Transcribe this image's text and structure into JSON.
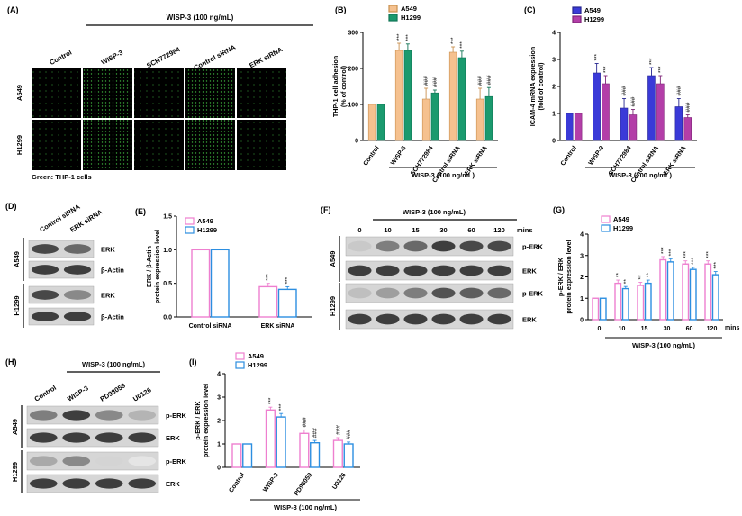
{
  "panel_labels": [
    "(A)",
    "(B)",
    "(C)",
    "(D)",
    "(E)",
    "(F)",
    "(G)",
    "(H)",
    "(I)"
  ],
  "treatment": "WISP-3 (100 ng/mL)",
  "colors": {
    "a549_b": "#f5c18f",
    "h1299_b": "#1a9a6e",
    "a549_c": "#3a3ad8",
    "h1299_c": "#b33ea8",
    "a549_eg": "#ee7fcf",
    "h1299_eg": "#2c8ee0"
  },
  "panelA": {
    "columns": [
      "Control",
      "WISP-3",
      "SCH772984",
      "Control siRNA",
      "ERK siRNA"
    ],
    "rows": [
      "A549",
      "H1299"
    ],
    "caption": "Green: THP-1 cells"
  },
  "panelD": {
    "lanes": [
      "Control siRNA",
      "ERK siRNA"
    ],
    "bands": [
      "ERK",
      "β-Actin",
      "ERK",
      "β-Actin"
    ],
    "cells": [
      "A549",
      "H1299"
    ]
  },
  "panelF": {
    "time_labels": [
      "0",
      "10",
      "15",
      "30",
      "60",
      "120"
    ],
    "time_unit": "mins",
    "bands": [
      "p-ERK",
      "ERK",
      "p-ERK",
      "ERK"
    ],
    "cells": [
      "A549",
      "H1299"
    ]
  },
  "panelH": {
    "lanes": [
      "Control",
      "WISP-3",
      "PD98059",
      "U0126"
    ],
    "bands": [
      "p-ERK",
      "ERK",
      "p-ERK",
      "ERK"
    ],
    "cells": [
      "A549",
      "H1299"
    ]
  },
  "chart_data": [
    {
      "id": "B",
      "type": "bar",
      "ylabel": "THP-1 cell adhesion\n(% of control)",
      "ylim": [
        0,
        300
      ],
      "yticks": [
        0,
        100,
        200,
        300
      ],
      "categories": [
        "Control",
        "WISP-3",
        "SCH772984",
        "Control siRNA",
        "ERK siRNA"
      ],
      "series": [
        {
          "name": "A549",
          "values": [
            100,
            250,
            115,
            245,
            115
          ],
          "errors": [
            0,
            20,
            30,
            15,
            30
          ]
        },
        {
          "name": "H1299",
          "values": [
            100,
            250,
            132,
            230,
            122
          ],
          "errors": [
            0,
            18,
            8,
            18,
            25
          ]
        }
      ],
      "annotations": [
        "",
        "***",
        "###",
        "***",
        "###"
      ],
      "group_label": "WISP-3 (100 ng/mL)"
    },
    {
      "id": "C",
      "type": "bar",
      "ylabel": "ICAM-4 mRNA expression\n(fold of control)",
      "ylim": [
        0,
        4
      ],
      "yticks": [
        0,
        1,
        2,
        3,
        4
      ],
      "categories": [
        "Control",
        "WISP-3",
        "SCH772984",
        "Control siRNA",
        "ERK siRNA"
      ],
      "series": [
        {
          "name": "A549",
          "values": [
            1.0,
            2.5,
            1.2,
            2.4,
            1.25
          ],
          "errors": [
            0,
            0.35,
            0.35,
            0.3,
            0.3
          ]
        },
        {
          "name": "H1299",
          "values": [
            1.0,
            2.1,
            0.95,
            2.1,
            0.85
          ],
          "errors": [
            0,
            0.3,
            0.2,
            0.3,
            0.1
          ]
        }
      ],
      "annotations": [
        "",
        "***",
        "###",
        "***",
        "###"
      ],
      "group_label": "WISP-3 (100 ng/mL)"
    },
    {
      "id": "E",
      "type": "bar",
      "ylabel": "ERK / β-Actin\nprotein expression level",
      "ylim": [
        0,
        1.5
      ],
      "yticks": [
        0.0,
        0.5,
        1.0,
        1.5
      ],
      "categories": [
        "Control siRNA",
        "ERK siRNA"
      ],
      "series": [
        {
          "name": "A549",
          "values": [
            1.0,
            0.45
          ],
          "errors": [
            0,
            0.05
          ]
        },
        {
          "name": "H1299",
          "values": [
            1.0,
            0.41
          ],
          "errors": [
            0,
            0.04
          ]
        }
      ],
      "annotations": [
        "",
        "***"
      ]
    },
    {
      "id": "G",
      "type": "bar",
      "ylabel": "p-ERK / ERK\nprotein expression level",
      "ylim": [
        0,
        4
      ],
      "yticks": [
        0,
        1,
        2,
        3,
        4
      ],
      "categories": [
        "0",
        "10",
        "15",
        "30",
        "60",
        "120"
      ],
      "x_unit": "mins",
      "series": [
        {
          "name": "A549",
          "values": [
            1.0,
            1.7,
            1.6,
            2.8,
            2.6,
            2.6
          ],
          "errors": [
            0,
            0.15,
            0.15,
            0.15,
            0.15,
            0.15
          ]
        },
        {
          "name": "H1299",
          "values": [
            1.0,
            1.45,
            1.7,
            2.7,
            2.35,
            2.1
          ],
          "errors": [
            0,
            0.1,
            0.15,
            0.15,
            0.1,
            0.15
          ]
        }
      ],
      "annotations": [
        "",
        "**",
        "**",
        "***",
        "***",
        "***"
      ],
      "group_label": "WISP-3 (100 ng/mL)"
    },
    {
      "id": "I",
      "type": "bar",
      "ylabel": "p-ERK / ERK\nprotein expression level",
      "ylim": [
        0,
        4
      ],
      "yticks": [
        0,
        1,
        2,
        3,
        4
      ],
      "categories": [
        "Control",
        "WISP-3",
        "PD98059",
        "U0126"
      ],
      "series": [
        {
          "name": "A549",
          "values": [
            1.0,
            2.45,
            1.45,
            1.15
          ],
          "errors": [
            0,
            0.12,
            0.15,
            0.12
          ]
        },
        {
          "name": "H1299",
          "values": [
            1.0,
            2.15,
            1.05,
            1.0
          ],
          "errors": [
            0,
            0.15,
            0.1,
            0.08
          ]
        }
      ],
      "annotations": [
        "",
        "***",
        "###",
        "###"
      ],
      "group_label": "WISP-3 (100 ng/mL)"
    }
  ]
}
